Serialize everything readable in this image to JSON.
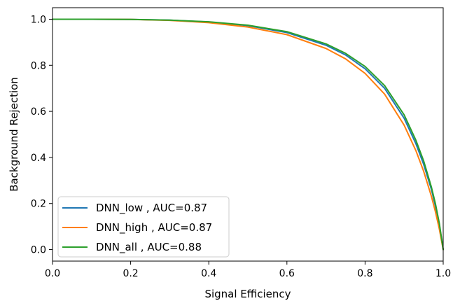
{
  "chart_data": {
    "type": "line",
    "xlabel": "Signal Efficiency",
    "ylabel": "Background Rejection",
    "xlim": [
      0.0,
      1.0
    ],
    "ylim": [
      -0.05,
      1.05
    ],
    "xticks": [
      "0.0",
      "0.2",
      "0.4",
      "0.6",
      "0.8",
      "1.0"
    ],
    "yticks": [
      "0.0",
      "0.2",
      "0.4",
      "0.6",
      "0.8",
      "1.0"
    ],
    "grid": false,
    "legend_position": "lower-left",
    "series": [
      {
        "name": "DNN_low , AUC=0.87",
        "color": "#1f77b4",
        "x": [
          0.0,
          0.1,
          0.2,
          0.3,
          0.4,
          0.5,
          0.6,
          0.7,
          0.75,
          0.8,
          0.85,
          0.9,
          0.93,
          0.95,
          0.97,
          0.98,
          0.99,
          1.0
        ],
        "y": [
          1.0,
          1.0,
          0.999,
          0.996,
          0.988,
          0.972,
          0.942,
          0.887,
          0.845,
          0.785,
          0.7,
          0.57,
          0.46,
          0.37,
          0.26,
          0.19,
          0.11,
          0.0
        ]
      },
      {
        "name": "DNN_high , AUC=0.87",
        "color": "#ff7f0e",
        "x": [
          0.0,
          0.1,
          0.2,
          0.3,
          0.4,
          0.5,
          0.6,
          0.7,
          0.75,
          0.8,
          0.85,
          0.9,
          0.93,
          0.95,
          0.97,
          0.98,
          0.99,
          1.0
        ],
        "y": [
          1.0,
          1.0,
          0.999,
          0.995,
          0.985,
          0.966,
          0.933,
          0.873,
          0.828,
          0.765,
          0.675,
          0.54,
          0.43,
          0.34,
          0.23,
          0.165,
          0.09,
          0.0
        ]
      },
      {
        "name": "DNN_all , AUC=0.88",
        "color": "#2ca02c",
        "x": [
          0.0,
          0.1,
          0.2,
          0.3,
          0.4,
          0.5,
          0.6,
          0.7,
          0.75,
          0.8,
          0.85,
          0.9,
          0.93,
          0.95,
          0.97,
          0.98,
          0.99,
          1.0
        ],
        "y": [
          1.0,
          1.0,
          0.999,
          0.996,
          0.989,
          0.974,
          0.946,
          0.893,
          0.852,
          0.795,
          0.712,
          0.585,
          0.475,
          0.385,
          0.27,
          0.2,
          0.115,
          0.0
        ]
      }
    ]
  }
}
